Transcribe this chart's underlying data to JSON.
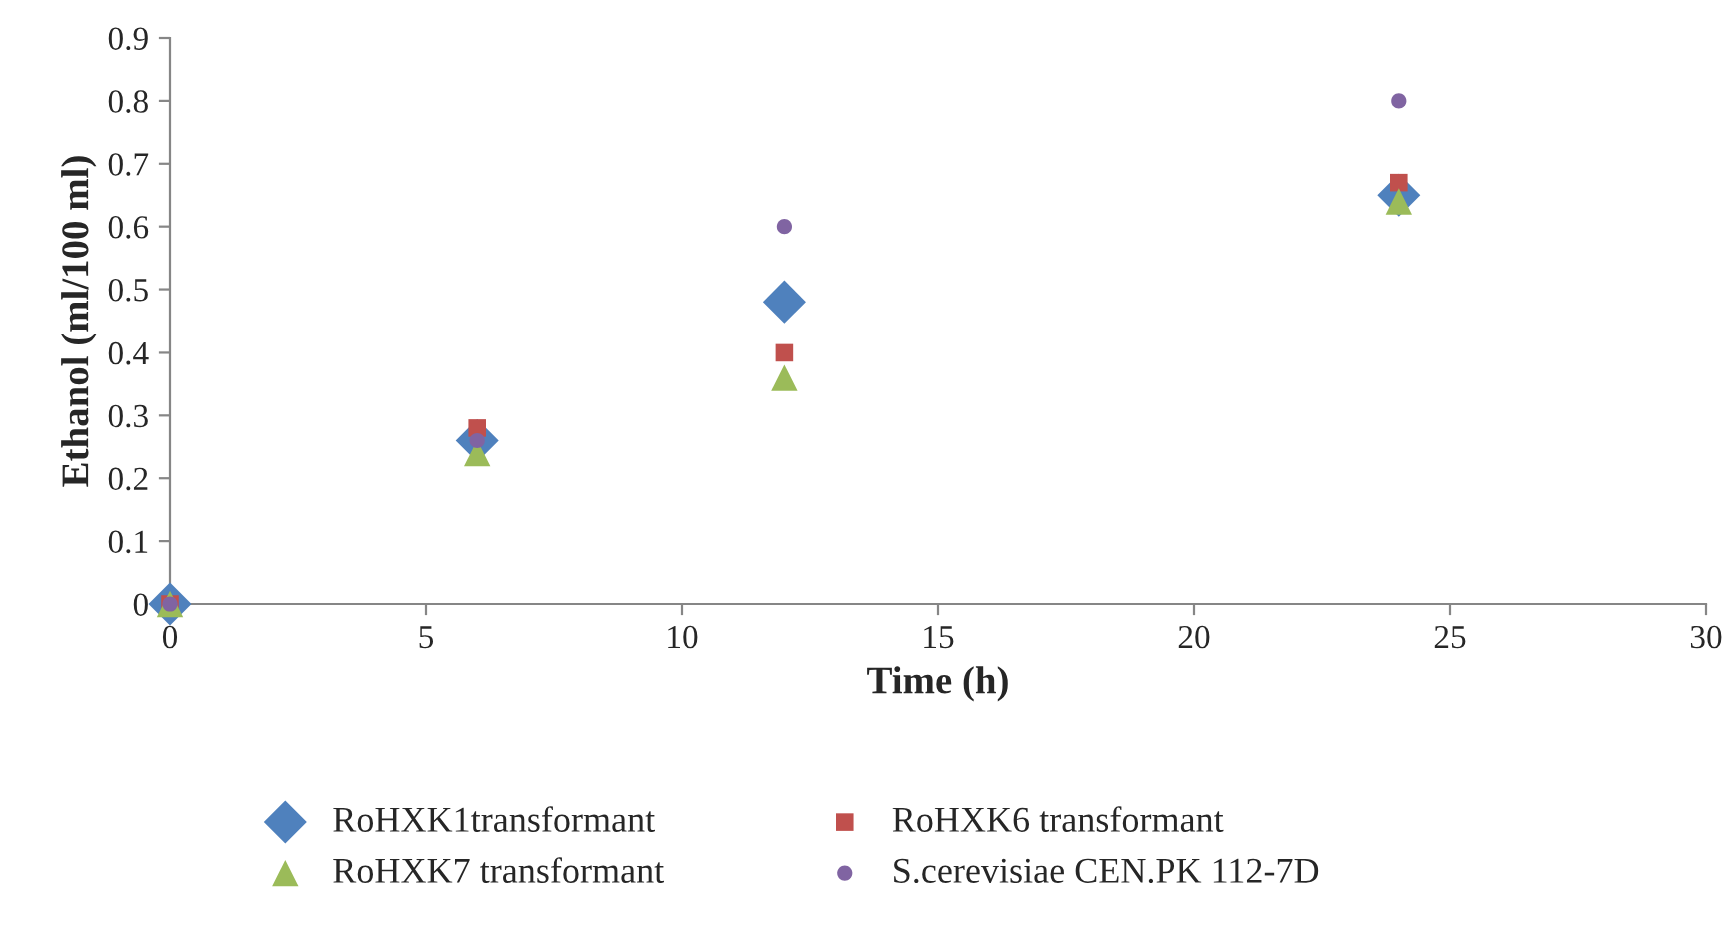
{
  "chart_data": {
    "type": "scatter",
    "xlabel": "Time (h)",
    "ylabel": "Ethanol (ml/100 ml)",
    "x": [
      0,
      6,
      12,
      24
    ],
    "series": [
      {
        "name": "RoHXK1transformant",
        "color": "#4f81bd",
        "marker": "diamond",
        "values": [
          0,
          0.26,
          0.48,
          0.65
        ]
      },
      {
        "name": "RoHXK6 transformant",
        "color": "#c0504d",
        "marker": "square",
        "values": [
          0,
          0.28,
          0.4,
          0.67
        ]
      },
      {
        "name": "RoHXK7 transformant",
        "color": "#9bbb59",
        "marker": "triangle",
        "values": [
          0,
          0.24,
          0.36,
          0.64
        ]
      },
      {
        "name": "S.cerevisiae CEN.PK 112-7D",
        "color": "#8064a2",
        "marker": "circle",
        "values": [
          0,
          0.26,
          0.6,
          0.8
        ]
      }
    ],
    "xlim": [
      0,
      30
    ],
    "xticks": [
      0,
      5,
      10,
      15,
      20,
      25,
      30
    ],
    "ylim": [
      0,
      0.9
    ],
    "yticks": [
      0,
      0.1,
      0.2,
      0.3,
      0.4,
      0.5,
      0.6,
      0.7,
      0.8,
      0.9
    ],
    "grid": false,
    "legend": "bottom"
  }
}
